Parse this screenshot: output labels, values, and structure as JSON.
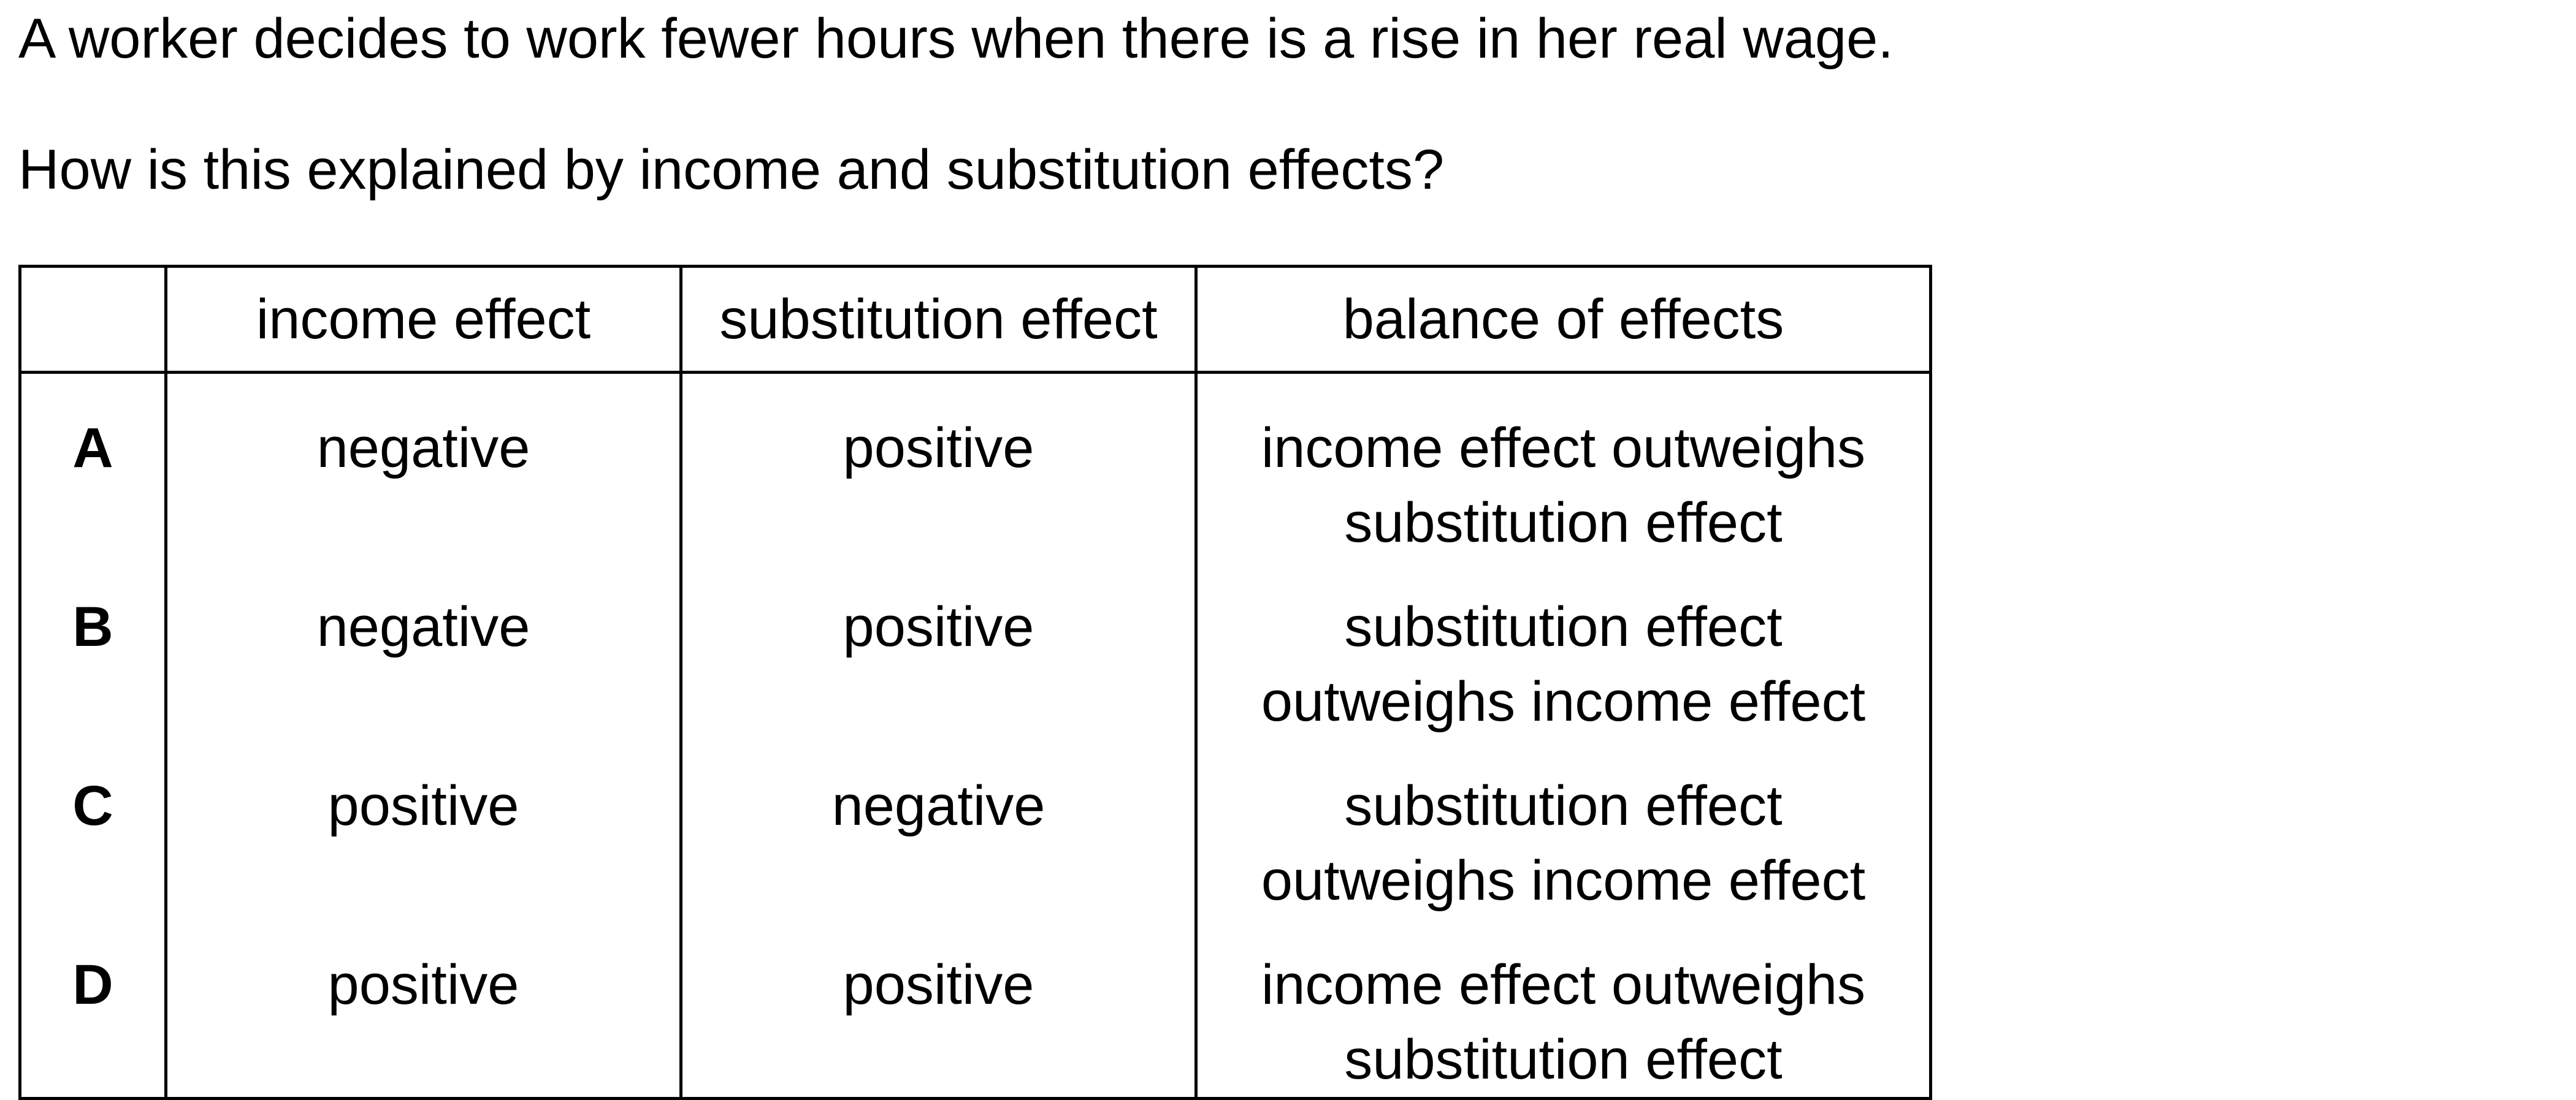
{
  "question": {
    "stem": "A worker decides to work fewer hours when there is a rise in her real wage.",
    "prompt": "How is this explained by income and substitution effects?"
  },
  "table": {
    "headers": [
      "",
      "income effect",
      "substitution effect",
      "balance of effects"
    ],
    "rows": [
      {
        "option": "A",
        "income_effect": "negative",
        "substitution_effect": "positive",
        "balance_line1": "income effect outweighs",
        "balance_line2": "substitution effect"
      },
      {
        "option": "B",
        "income_effect": "negative",
        "substitution_effect": "positive",
        "balance_line1": "substitution effect",
        "balance_line2": "outweighs income effect"
      },
      {
        "option": "C",
        "income_effect": "positive",
        "substitution_effect": "negative",
        "balance_line1": "substitution effect",
        "balance_line2": "outweighs income effect"
      },
      {
        "option": "D",
        "income_effect": "positive",
        "substitution_effect": "positive",
        "balance_line1": "income effect outweighs",
        "balance_line2": "substitution effect"
      }
    ]
  }
}
